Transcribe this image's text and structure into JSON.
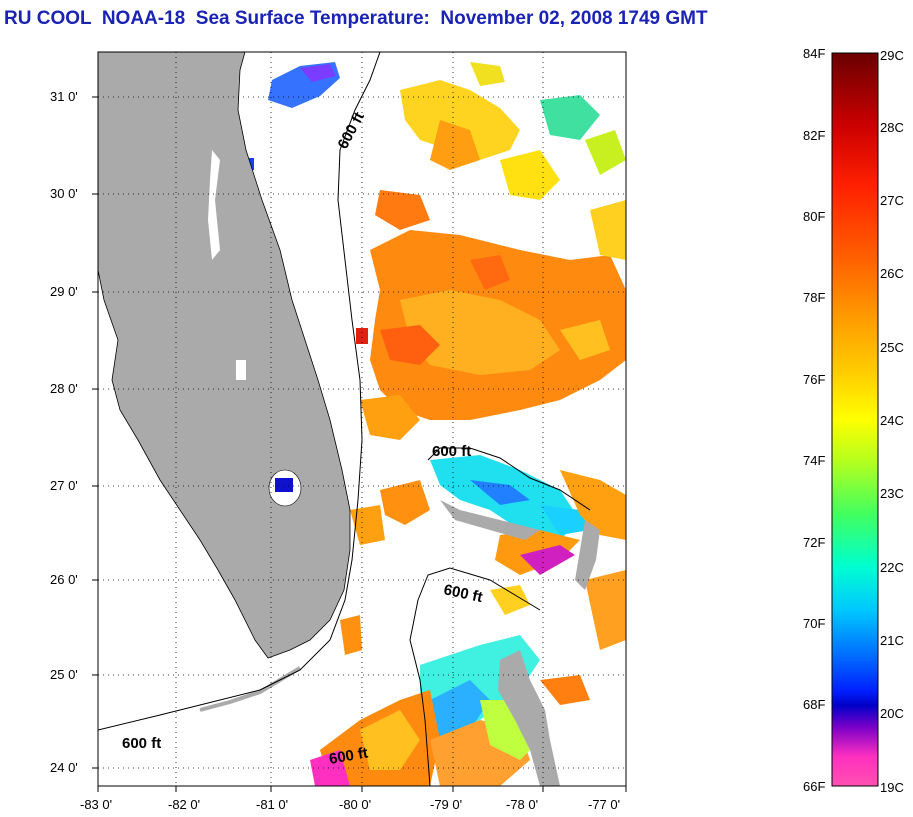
{
  "title": "RU COOL  NOAA-18  Sea Surface Temperature:  November 02, 2008 1749 GMT",
  "colors": {
    "title": "#1a23b4",
    "land": "#aaaaaa",
    "contour": "#000000",
    "grid": "#000000"
  },
  "axes": {
    "lon_ticks": [
      "-83 0'",
      "-82 0'",
      "-81 0'",
      "-80 0'",
      "-79 0'",
      "-78 0'",
      "-77 0'"
    ],
    "lat_ticks": [
      "31 0'",
      "30 0'",
      "29 0'",
      "28 0'",
      "27 0'",
      "26 0'",
      "25 0'",
      "24 0'"
    ],
    "lon_range": [
      -83,
      -76.9
    ],
    "lat_range": [
      23.85,
      31.45
    ]
  },
  "contours": {
    "label": "600 ft",
    "labels": [
      "600 ft",
      "600 ft",
      "600 ft",
      "600 ft",
      "600 ft"
    ]
  },
  "colorbar": {
    "fahrenheit": [
      "84F",
      "82F",
      "80F",
      "78F",
      "76F",
      "74F",
      "72F",
      "70F",
      "68F",
      "66F"
    ],
    "celsius": [
      "29C",
      "28C",
      "27C",
      "26C",
      "25C",
      "24C",
      "23C",
      "22C",
      "21C",
      "20C",
      "19C"
    ],
    "gradient": [
      "#6b0000",
      "#cc0000",
      "#ff2000",
      "#ff6000",
      "#ff9a00",
      "#ffd000",
      "#ffff00",
      "#b0ff20",
      "#40ff60",
      "#00ffd0",
      "#00c8ff",
      "#0070ff",
      "#0020ff",
      "#0000c8",
      "#7a00c8",
      "#ff30c0",
      "#ff50b0"
    ]
  }
}
